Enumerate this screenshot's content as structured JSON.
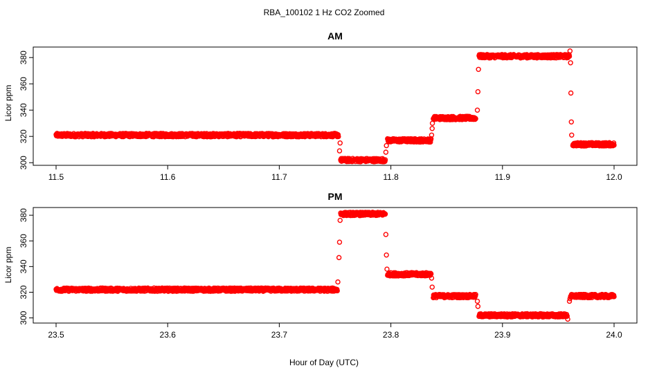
{
  "figure": {
    "title": "RBA_100102  1 Hz CO2 Zoomed",
    "xlabel": "Hour of Day (UTC)"
  },
  "colors": {
    "points": "#ff0000",
    "axes": "#000000",
    "background": "#ffffff"
  },
  "chart_data": [
    {
      "type": "scatter",
      "title": "AM",
      "xlabel": "",
      "ylabel": "Licor ppm",
      "xlim": [
        11.5,
        12.0
      ],
      "ylim": [
        298,
        388
      ],
      "xticks": [
        11.5,
        11.6,
        11.7,
        11.8,
        11.9,
        12.0
      ],
      "xtick_labels": [
        "11.5",
        "11.6",
        "11.7",
        "11.8",
        "11.9",
        "12.0"
      ],
      "yticks": [
        300,
        320,
        340,
        360,
        380
      ],
      "ytick_labels": [
        "300",
        "320",
        "340",
        "360",
        "380"
      ],
      "marker": "open-circle",
      "grid": false,
      "segments": [
        {
          "x_start": 11.5,
          "x_end": 11.753,
          "y": 321
        },
        {
          "x_start": 11.755,
          "x_end": 11.795,
          "y": 302
        },
        {
          "x_start": 11.797,
          "x_end": 11.836,
          "y": 317
        },
        {
          "x_start": 11.838,
          "x_end": 11.876,
          "y": 334
        },
        {
          "x_start": 11.879,
          "x_end": 11.96,
          "y": 381
        },
        {
          "x_start": 11.963,
          "x_end": 12.0,
          "y": 314
        }
      ],
      "series": [
        {
          "values": [
            [
              11.754,
              309
            ],
            [
              11.7545,
              315
            ],
            [
              11.7955,
              308
            ],
            [
              11.796,
              313
            ],
            [
              11.8365,
              321
            ],
            [
              11.837,
              326
            ],
            [
              11.8372,
              330
            ],
            [
              11.8775,
              340
            ],
            [
              11.878,
              354
            ],
            [
              11.8785,
              371
            ],
            [
              11.9605,
              385
            ],
            [
              11.961,
              376
            ],
            [
              11.9613,
              353
            ],
            [
              11.9617,
              331
            ],
            [
              11.962,
              321
            ]
          ]
        }
      ]
    },
    {
      "type": "scatter",
      "title": "PM",
      "xlabel": "",
      "ylabel": "Licor ppm",
      "xlim": [
        23.5,
        24.0
      ],
      "ylim": [
        296,
        386
      ],
      "xticks": [
        23.5,
        23.6,
        23.7,
        23.8,
        23.9,
        24.0
      ],
      "xtick_labels": [
        "23.5",
        "23.6",
        "23.7",
        "23.8",
        "23.9",
        "24.0"
      ],
      "yticks": [
        300,
        320,
        340,
        360,
        380
      ],
      "ytick_labels": [
        "300",
        "320",
        "340",
        "360",
        "380"
      ],
      "marker": "open-circle",
      "grid": false,
      "segments": [
        {
          "x_start": 23.5,
          "x_end": 23.752,
          "y": 322
        },
        {
          "x_start": 23.755,
          "x_end": 23.795,
          "y": 381
        },
        {
          "x_start": 23.797,
          "x_end": 23.836,
          "y": 334
        },
        {
          "x_start": 23.838,
          "x_end": 23.876,
          "y": 317
        },
        {
          "x_start": 23.879,
          "x_end": 23.958,
          "y": 302
        },
        {
          "x_start": 23.961,
          "x_end": 24.0,
          "y": 317
        }
      ],
      "series": [
        {
          "values": [
            [
              23.7525,
              328
            ],
            [
              23.7535,
              347
            ],
            [
              23.754,
              359
            ],
            [
              23.7545,
              376
            ],
            [
              23.7955,
              365
            ],
            [
              23.796,
              349
            ],
            [
              23.7965,
              338
            ],
            [
              23.8365,
              331
            ],
            [
              23.837,
              324
            ],
            [
              23.8775,
              313
            ],
            [
              23.878,
              309
            ],
            [
              23.9585,
              299
            ],
            [
              23.96,
              313
            ],
            [
              23.9605,
              315
            ]
          ]
        }
      ]
    }
  ]
}
